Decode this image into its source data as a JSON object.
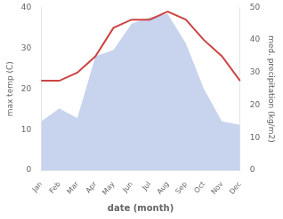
{
  "chart_data": {
    "type": "line",
    "categories": [
      "Jan",
      "Feb",
      "Mar",
      "Apr",
      "May",
      "Jun",
      "Jul",
      "Aug",
      "Sep",
      "Oct",
      "Nov",
      "Dec"
    ],
    "xlabel": "date (month)",
    "ylabel": "max temp (C)",
    "y2label": "med. precipitation (kg/m2)",
    "series": [
      {
        "type": "area",
        "axis": "y2",
        "color": "#c8d4ee",
        "values": [
          15,
          19,
          16,
          35,
          37,
          45,
          47,
          48,
          39,
          25,
          15,
          14
        ]
      },
      {
        "type": "line",
        "color": "#cc4444",
        "values": [
          22,
          22,
          24,
          28,
          35,
          37,
          37,
          39,
          37,
          32,
          28,
          22
        ]
      }
    ],
    "ylim": [
      0,
      40
    ],
    "yticks": [
      0,
      10,
      20,
      30,
      40
    ],
    "y2lim": [
      0,
      50
    ],
    "y2ticks": [
      0,
      10,
      20,
      30,
      40,
      50
    ],
    "grid": false
  }
}
